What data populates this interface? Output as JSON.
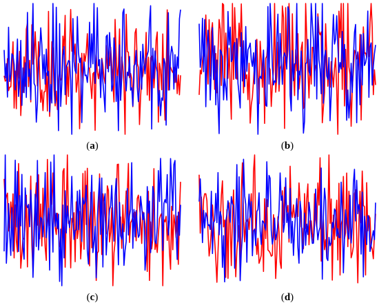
{
  "colors": {
    "series_1": "#ff0000",
    "series_2": "#0000ff",
    "background": "#ffffff"
  },
  "panels": [
    {
      "letter": "a"
    },
    {
      "letter": "b"
    },
    {
      "letter": "c"
    },
    {
      "letter": "d"
    }
  ],
  "chart_data": [
    {
      "type": "line",
      "x_count": 160,
      "ylim": [
        -1,
        1
      ],
      "grid": false,
      "axes_visible": false,
      "series": [
        {
          "color": "#ff0000",
          "mean": 0.0,
          "amplitude": 0.38,
          "seed": 11
        },
        {
          "color": "#0000ff",
          "mean": 0.0,
          "amplitude": 0.4,
          "seed": 17
        }
      ]
    },
    {
      "type": "line",
      "x_count": 160,
      "ylim": [
        -1,
        1
      ],
      "grid": false,
      "axes_visible": false,
      "series": [
        {
          "color": "#ff0000",
          "mean": 0.1,
          "amplitude": 0.45,
          "seed": 23
        },
        {
          "color": "#0000ff",
          "mean": 0.1,
          "amplitude": 0.42,
          "seed": 29
        }
      ]
    },
    {
      "type": "line",
      "x_count": 160,
      "ylim": [
        -1,
        1
      ],
      "grid": false,
      "axes_visible": false,
      "series": [
        {
          "color": "#ff0000",
          "mean": 0.0,
          "amplitude": 0.45,
          "seed": 31
        },
        {
          "color": "#0000ff",
          "mean": 0.0,
          "amplitude": 0.43,
          "seed": 37
        }
      ]
    },
    {
      "type": "line",
      "x_count": 160,
      "ylim": [
        -1,
        1
      ],
      "grid": false,
      "axes_visible": false,
      "series": [
        {
          "color": "#ff0000",
          "mean": 0.0,
          "amplitude": 0.42,
          "seed": 41
        },
        {
          "color": "#0000ff",
          "mean": 0.0,
          "amplitude": 0.4,
          "seed": 43
        }
      ]
    }
  ]
}
